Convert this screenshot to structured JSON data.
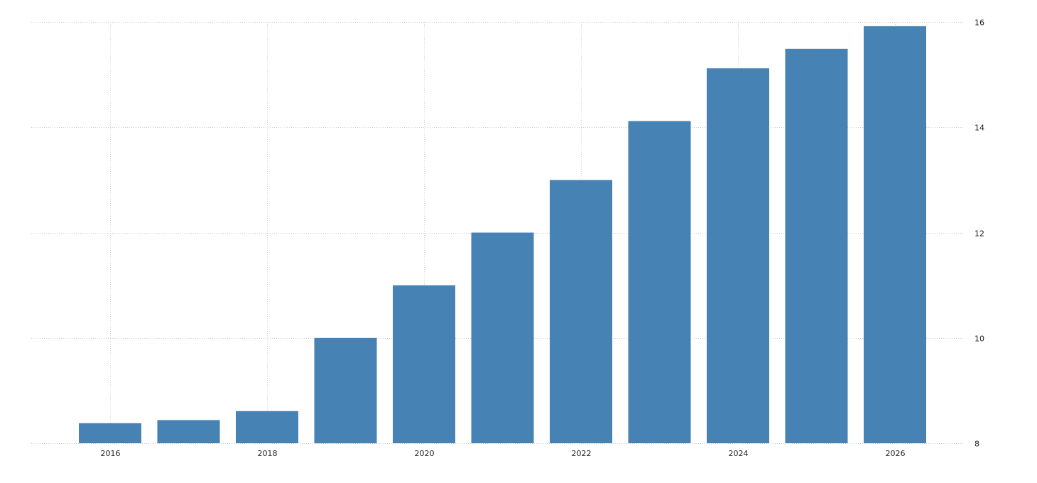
{
  "chart_data": {
    "type": "bar",
    "title": "",
    "xlabel": "",
    "ylabel": "",
    "x": [
      2016,
      2017,
      2018,
      2019,
      2020,
      2021,
      2022,
      2023,
      2024,
      2025,
      2026
    ],
    "values": [
      8.38,
      8.44,
      8.61,
      10.0,
      11.0,
      12.0,
      13.0,
      14.12,
      15.12,
      15.49,
      15.92
    ],
    "ylim": [
      8,
      16
    ],
    "y_ticks": [
      8,
      10,
      12,
      14,
      16
    ],
    "y_tick_labels": [
      "8",
      "10",
      "12",
      "14",
      "16"
    ],
    "x_ticks": [
      2016,
      2018,
      2020,
      2022,
      2024,
      2026
    ],
    "x_tick_labels": [
      "2016",
      "2018",
      "2020",
      "2022",
      "2024",
      "2026"
    ],
    "y_axis_side": "right",
    "grid": true,
    "bar_color": "#4682b4",
    "grid_color": "#d0d0d0"
  }
}
